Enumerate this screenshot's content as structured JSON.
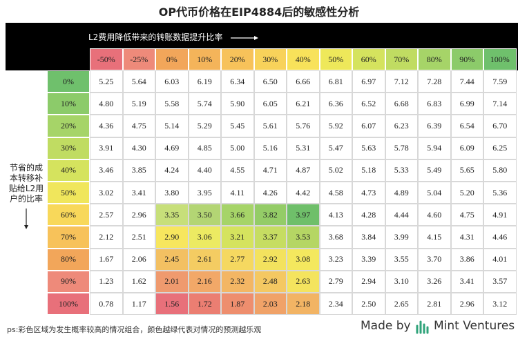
{
  "header": {
    "title": "OP代币价格在EIP4884后的敏感性分析"
  },
  "table": {
    "column_axis_label": "L2费用降低带来的转账数据提升比率",
    "row_axis_label": [
      "节省的成",
      "本转移补",
      "贴给L2用",
      "户的比率"
    ],
    "columns": [
      "-50%",
      "-25%",
      "0%",
      "10%",
      "20%",
      "30%",
      "40%",
      "50%",
      "60%",
      "70%",
      "80%",
      "90%",
      "100%"
    ],
    "row_headers": [
      "0%",
      "10%",
      "20%",
      "30%",
      "40%",
      "50%",
      "60%",
      "70%",
      "80%",
      "90%",
      "100%"
    ],
    "rows": [
      [
        "5.25",
        "5.64",
        "6.03",
        "6.19",
        "6.34",
        "6.50",
        "6.66",
        "6.81",
        "6.97",
        "7.12",
        "7.28",
        "7.44",
        "7.59"
      ],
      [
        "4.80",
        "5.19",
        "5.58",
        "5.74",
        "5.90",
        "6.05",
        "6.21",
        "6.36",
        "6.52",
        "6.68",
        "6.83",
        "6.99",
        "7.14"
      ],
      [
        "4.36",
        "4.75",
        "5.14",
        "5.29",
        "5.45",
        "5.61",
        "5.76",
        "5.92",
        "6.07",
        "6.23",
        "6.39",
        "6.54",
        "6.70"
      ],
      [
        "3.91",
        "4.30",
        "4.69",
        "4.85",
        "5.00",
        "5.16",
        "5.31",
        "5.47",
        "5.63",
        "5.78",
        "5.94",
        "6.09",
        "6.25"
      ],
      [
        "3.46",
        "3.85",
        "4.24",
        "4.40",
        "4.55",
        "4.71",
        "4.87",
        "5.02",
        "5.18",
        "5.33",
        "5.49",
        "5.65",
        "5.80"
      ],
      [
        "3.02",
        "3.41",
        "3.80",
        "3.95",
        "4.11",
        "4.26",
        "4.42",
        "4.58",
        "4.73",
        "4.89",
        "5.04",
        "5.20",
        "5.36"
      ],
      [
        "2.57",
        "2.96",
        "3.35",
        "3.50",
        "3.66",
        "3.82",
        "3.97",
        "4.13",
        "4.28",
        "4.44",
        "4.60",
        "4.75",
        "4.91"
      ],
      [
        "2.12",
        "2.51",
        "2.90",
        "3.06",
        "3.21",
        "3.37",
        "3.53",
        "3.68",
        "3.84",
        "3.99",
        "4.15",
        "4.31",
        "4.46"
      ],
      [
        "1.67",
        "2.06",
        "2.45",
        "2.61",
        "2.77",
        "2.92",
        "3.08",
        "3.23",
        "3.39",
        "3.55",
        "3.70",
        "3.86",
        "4.01"
      ],
      [
        "1.23",
        "1.62",
        "2.01",
        "2.16",
        "2.32",
        "2.48",
        "2.63",
        "2.79",
        "2.94",
        "3.10",
        "3.26",
        "3.41",
        "3.57"
      ],
      [
        "0.78",
        "1.17",
        "1.56",
        "1.72",
        "1.87",
        "2.03",
        "2.18",
        "2.34",
        "2.50",
        "2.65",
        "2.81",
        "2.96",
        "3.12"
      ]
    ]
  },
  "footer": {
    "note": "ps:彩色区域为发生概率较高的情况组合，颜色越绿代表对情况的预测越乐观",
    "made_by": "Made by",
    "brand": "Mint Ventures"
  }
}
